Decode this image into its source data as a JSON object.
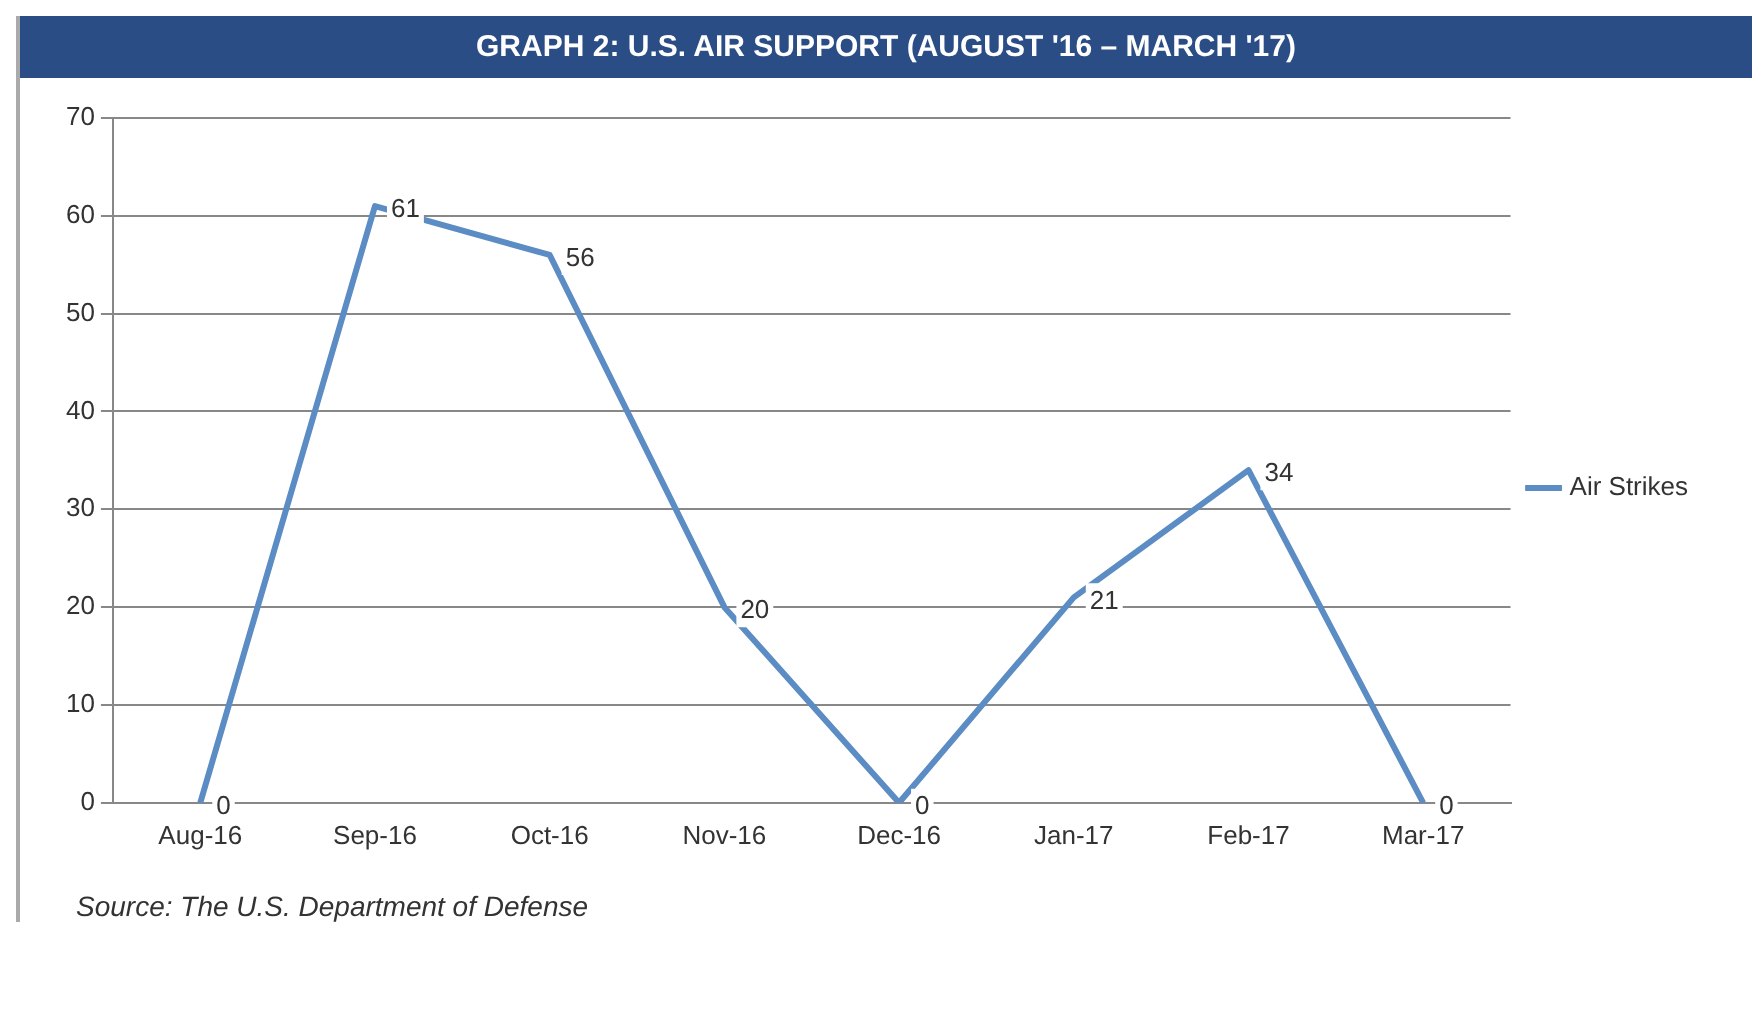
{
  "chart_data": {
    "type": "line",
    "title": "GRAPH 2: U.S. AIR SUPPORT (AUGUST '16 – MARCH '17)",
    "categories": [
      "Aug-16",
      "Sep-16",
      "Oct-16",
      "Nov-16",
      "Dec-16",
      "Jan-17",
      "Feb-17",
      "Mar-17"
    ],
    "series": [
      {
        "name": "Air Strikes",
        "color": "#5b8cc4",
        "values": [
          0,
          61,
          56,
          20,
          0,
          21,
          34,
          0
        ]
      }
    ],
    "ylim": [
      0,
      70
    ],
    "yticks": [
      0,
      10,
      20,
      30,
      40,
      50,
      60,
      70
    ],
    "grid": "y",
    "legend": "right",
    "data_labels": true,
    "marker": "none",
    "line_style": "solid",
    "annotations": [
      "Source: The U.S. Department of Defense"
    ]
  }
}
